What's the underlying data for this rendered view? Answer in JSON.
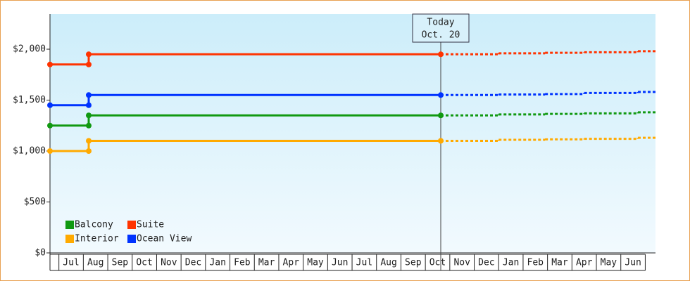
{
  "chart_data": {
    "type": "step",
    "xlim": [
      -0.865,
      23.92
    ],
    "xticks": [
      {
        "value": 0,
        "label": "Jul"
      },
      {
        "value": 1,
        "label": "Aug"
      },
      {
        "value": 2,
        "label": "Sep"
      },
      {
        "value": 3,
        "label": "Oct"
      },
      {
        "value": 4,
        "label": "Nov"
      },
      {
        "value": 5,
        "label": "Dec"
      },
      {
        "value": 6,
        "label": "Jan"
      },
      {
        "value": 7,
        "label": "Feb"
      },
      {
        "value": 8,
        "label": "Mar"
      },
      {
        "value": 9,
        "label": "Apr"
      },
      {
        "value": 10,
        "label": "May"
      },
      {
        "value": 11,
        "label": "Jun"
      },
      {
        "value": 12,
        "label": "Jul"
      },
      {
        "value": 13,
        "label": "Aug"
      },
      {
        "value": 14,
        "label": "Sep"
      },
      {
        "value": 15,
        "label": "Oct"
      },
      {
        "value": 16,
        "label": "Nov"
      },
      {
        "value": 17,
        "label": "Dec"
      },
      {
        "value": 18,
        "label": "Jan"
      },
      {
        "value": 19,
        "label": "Feb"
      },
      {
        "value": 20,
        "label": "Mar"
      },
      {
        "value": 21,
        "label": "Apr"
      },
      {
        "value": 22,
        "label": "May"
      },
      {
        "value": 23,
        "label": "Jun"
      }
    ],
    "ylim": [
      0,
      2345
    ],
    "yticks": [
      {
        "value": 0,
        "label": "$0"
      },
      {
        "value": 500,
        "label": "$500"
      },
      {
        "value": 1000,
        "label": "$1,000"
      },
      {
        "value": 1500,
        "label": "$1,500"
      },
      {
        "value": 2000,
        "label": "$2,000"
      }
    ],
    "annotation": {
      "x": 15.13,
      "title": "Today",
      "date": "Oct. 20"
    },
    "series": [
      {
        "name": "Balcony",
        "color": "#119911",
        "x": [
          -0.865,
          0.72,
          15.13
        ],
        "values": [
          1250,
          1350,
          1350
        ],
        "forecast_x": [
          15.13,
          17.5,
          19.4,
          21.0,
          23.2
        ],
        "forecast_values": [
          1350,
          1360,
          1365,
          1370,
          1380
        ]
      },
      {
        "name": "Suite",
        "color": "#ff3300",
        "x": [
          -0.865,
          0.72,
          15.13
        ],
        "values": [
          1850,
          1950,
          1950
        ],
        "forecast_x": [
          15.13,
          17.5,
          19.4,
          21.0,
          23.2
        ],
        "forecast_values": [
          1950,
          1960,
          1965,
          1970,
          1980
        ]
      },
      {
        "name": "Interior",
        "color": "#ffaa00",
        "x": [
          -0.865,
          0.72,
          15.13
        ],
        "values": [
          1000,
          1100,
          1100
        ],
        "forecast_x": [
          15.13,
          17.5,
          19.4,
          21.0,
          23.2
        ],
        "forecast_values": [
          1100,
          1110,
          1115,
          1120,
          1130
        ]
      },
      {
        "name": "Ocean View",
        "color": "#0033ff",
        "x": [
          -0.865,
          0.72,
          15.13
        ],
        "values": [
          1450,
          1550,
          1550
        ],
        "forecast_x": [
          15.13,
          17.5,
          19.4,
          21.0,
          23.2
        ],
        "forecast_values": [
          1550,
          1555,
          1560,
          1570,
          1580
        ]
      }
    ]
  }
}
